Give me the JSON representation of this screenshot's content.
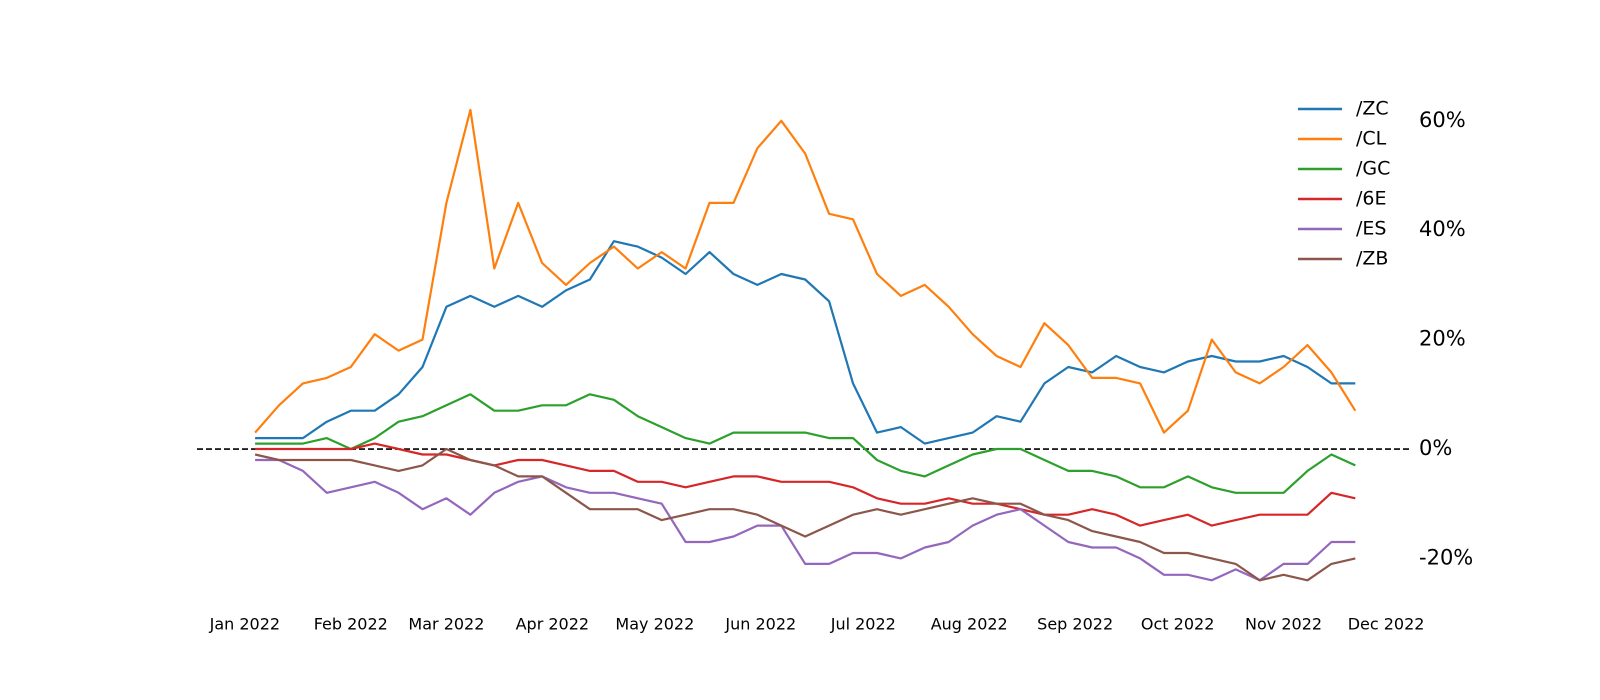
{
  "chart_data": {
    "type": "line",
    "x": [
      3,
      10,
      17,
      24,
      31,
      38,
      45,
      52,
      59,
      66,
      73,
      80,
      87,
      94,
      101,
      108,
      115,
      122,
      129,
      136,
      143,
      150,
      157,
      164,
      171,
      178,
      185,
      192,
      199,
      206,
      213,
      220,
      227,
      234,
      241,
      248,
      255,
      262,
      269,
      276,
      283,
      290,
      297,
      304,
      311,
      318,
      325
    ],
    "series": [
      {
        "name": "/ZC",
        "color": "#1f77b4",
        "values": [
          2,
          2,
          2,
          5,
          7,
          7,
          10,
          15,
          26,
          28,
          26,
          28,
          26,
          29,
          31,
          38,
          37,
          35,
          32,
          36,
          32,
          30,
          32,
          31,
          27,
          12,
          3,
          4,
          1,
          2,
          3,
          6,
          5,
          12,
          15,
          14,
          17,
          15,
          14,
          16,
          17,
          16,
          16,
          17,
          15,
          12,
          12
        ]
      },
      {
        "name": "/CL",
        "color": "#ff7f0e",
        "values": [
          3,
          8,
          12,
          13,
          15,
          21,
          18,
          20,
          45,
          62,
          33,
          45,
          34,
          30,
          34,
          37,
          33,
          36,
          33,
          45,
          45,
          55,
          60,
          54,
          43,
          42,
          32,
          28,
          30,
          26,
          21,
          17,
          15,
          23,
          19,
          13,
          13,
          12,
          3,
          7,
          20,
          14,
          12,
          15,
          19,
          14,
          7
        ]
      },
      {
        "name": "/GC",
        "color": "#2ca02c",
        "values": [
          1,
          1,
          1,
          2,
          0,
          2,
          5,
          6,
          8,
          10,
          7,
          7,
          8,
          8,
          10,
          9,
          6,
          4,
          2,
          1,
          3,
          3,
          3,
          3,
          2,
          2,
          -2,
          -4,
          -5,
          -3,
          -1,
          0,
          0,
          -2,
          -4,
          -4,
          -5,
          -7,
          -7,
          -5,
          -7,
          -8,
          -8,
          -8,
          -4,
          -1,
          -3
        ]
      },
      {
        "name": "/6E",
        "color": "#d62728",
        "values": [
          0,
          0,
          0,
          0,
          0,
          1,
          0,
          -1,
          -1,
          -2,
          -3,
          -2,
          -2,
          -3,
          -4,
          -4,
          -6,
          -6,
          -7,
          -6,
          -5,
          -5,
          -6,
          -6,
          -6,
          -7,
          -9,
          -10,
          -10,
          -9,
          -10,
          -10,
          -11,
          -12,
          -12,
          -11,
          -12,
          -14,
          -13,
          -12,
          -14,
          -13,
          -12,
          -12,
          -12,
          -8,
          -9
        ]
      },
      {
        "name": "/ES",
        "color": "#9467bd",
        "values": [
          -2,
          -2,
          -4,
          -8,
          -7,
          -6,
          -8,
          -11,
          -9,
          -12,
          -8,
          -6,
          -5,
          -7,
          -8,
          -8,
          -9,
          -10,
          -17,
          -17,
          -16,
          -14,
          -14,
          -21,
          -21,
          -19,
          -19,
          -20,
          -18,
          -17,
          -14,
          -12,
          -11,
          -14,
          -17,
          -18,
          -18,
          -20,
          -23,
          -23,
          -24,
          -22,
          -24,
          -21,
          -21,
          -17,
          -17
        ]
      },
      {
        "name": "/ZB",
        "color": "#8c564b",
        "values": [
          -1,
          -2,
          -2,
          -2,
          -2,
          -3,
          -4,
          -3,
          0,
          -2,
          -3,
          -5,
          -5,
          -8,
          -11,
          -11,
          -11,
          -13,
          -12,
          -11,
          -11,
          -12,
          -14,
          -16,
          -14,
          -12,
          -11,
          -12,
          -11,
          -10,
          -9,
          -10,
          -10,
          -12,
          -13,
          -15,
          -16,
          -17,
          -19,
          -19,
          -20,
          -21,
          -24,
          -23,
          -24,
          -21,
          -20
        ]
      }
    ],
    "xlim": [
      -14,
      341
    ],
    "xticks": [
      {
        "value": 0,
        "label": "Jan 2022"
      },
      {
        "value": 31,
        "label": "Feb 2022"
      },
      {
        "value": 59,
        "label": "Mar 2022"
      },
      {
        "value": 90,
        "label": "Apr 2022"
      },
      {
        "value": 120,
        "label": "May 2022"
      },
      {
        "value": 151,
        "label": "Jun 2022"
      },
      {
        "value": 181,
        "label": "Jul 2022"
      },
      {
        "value": 212,
        "label": "Aug 2022"
      },
      {
        "value": 243,
        "label": "Sep 2022"
      },
      {
        "value": 273,
        "label": "Oct 2022"
      },
      {
        "value": 304,
        "label": "Nov 2022"
      },
      {
        "value": 334,
        "label": "Dec 2022"
      }
    ],
    "ylim": [
      -27.6,
      66
    ],
    "yticks": [
      {
        "value": -20,
        "label": "-20%"
      },
      {
        "value": 0,
        "label": "0%"
      },
      {
        "value": 20,
        "label": "20%"
      },
      {
        "value": 40,
        "label": "40%"
      },
      {
        "value": 60,
        "label": "60%"
      }
    ],
    "reference_line": 0,
    "legend": "upper right",
    "grid": false
  }
}
